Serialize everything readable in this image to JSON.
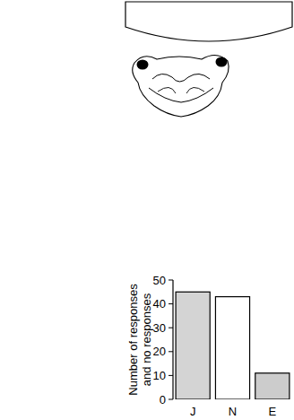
{
  "chart_data": {
    "type": "bar",
    "y_label": "Number of responses and no responses",
    "categories": [
      "J",
      "N",
      "E"
    ],
    "values": [
      45,
      43,
      11
    ],
    "colors": [
      "#d4d4d4",
      "#ffffff",
      "#cccccc"
    ],
    "ylim": [
      0,
      50
    ],
    "yticks": [
      0,
      10,
      20,
      30,
      40,
      50
    ],
    "grid": false
  }
}
